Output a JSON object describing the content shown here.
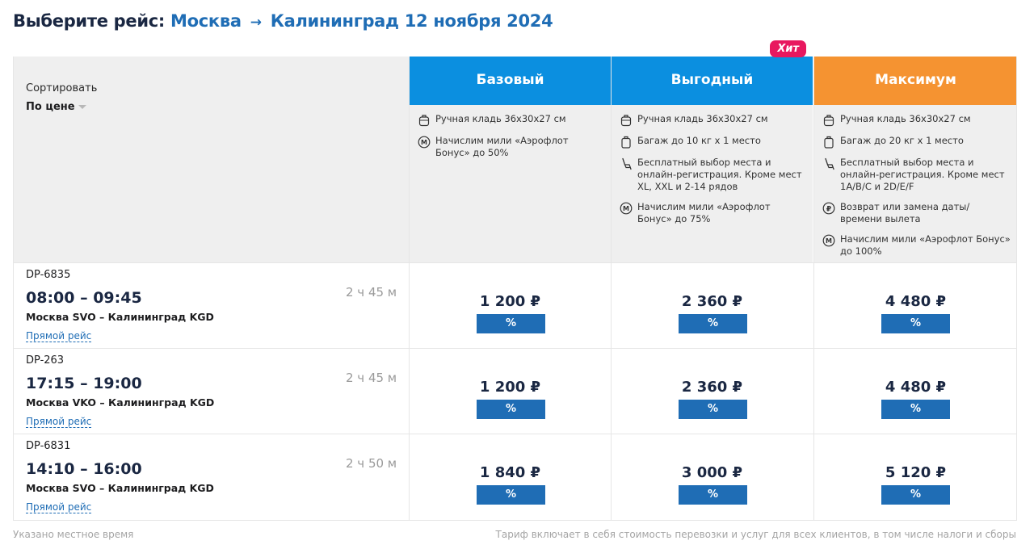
{
  "header": {
    "prefix": "Выберите рейс:",
    "from": "Москва",
    "arrow": "→",
    "to_date": "Калининград 12 ноября 2024"
  },
  "sort": {
    "label": "Сортировать",
    "value": "По цене"
  },
  "tariffs": [
    {
      "name": "Базовый",
      "color": "#0b8fe0",
      "features": [
        {
          "icon": "hand-luggage-icon",
          "text": "Ручная кладь 36x30x27 см"
        },
        {
          "icon": "miles-icon",
          "text": "Начислим мили «Аэрофлот Бонус» до 50%"
        }
      ]
    },
    {
      "name": "Выгодный",
      "color": "#0b8fe0",
      "badge": "Хит",
      "features": [
        {
          "icon": "hand-luggage-icon",
          "text": "Ручная кладь 36x30x27 см"
        },
        {
          "icon": "baggage-icon",
          "text": "Багаж до 10 кг x 1 место"
        },
        {
          "icon": "seat-icon",
          "text": "Бесплатный выбор места и онлайн-регистрация. Кроме мест XL, XXL и 2-14 рядов"
        },
        {
          "icon": "miles-icon",
          "text": "Начислим мили «Аэрофлот Бонус» до 75%"
        }
      ]
    },
    {
      "name": "Максимум",
      "color": "#f59331",
      "features": [
        {
          "icon": "hand-luggage-icon",
          "text": "Ручная кладь 36x30x27 см"
        },
        {
          "icon": "baggage-icon",
          "text": "Багаж до 20 кг x 1 место"
        },
        {
          "icon": "seat-icon",
          "text": "Бесплатный выбор места и онлайн-регистрация. Кроме мест 1A/B/C и 2D/E/F"
        },
        {
          "icon": "refund-icon",
          "text": "Возврат или замена даты/ времени вылета"
        },
        {
          "icon": "miles-icon",
          "text": "Начислим мили «Аэрофлот Бонус» до 100%"
        }
      ]
    }
  ],
  "flights": [
    {
      "number": "DP-6835",
      "times": "08:00 – 09:45",
      "route": "Москва SVO – Калининград KGD",
      "type": "Прямой рейс",
      "duration": "2 ч 45 м",
      "prices": [
        "1 200 ₽",
        "2 360 ₽",
        "4 480 ₽"
      ]
    },
    {
      "number": "DP-263",
      "times": "17:15 – 19:00",
      "route": "Москва VKO – Калининград KGD",
      "type": "Прямой рейс",
      "duration": "2 ч 45 м",
      "prices": [
        "1 200 ₽",
        "2 360 ₽",
        "4 480 ₽"
      ]
    },
    {
      "number": "DP-6831",
      "times": "14:10 – 16:00",
      "route": "Москва SVO – Калининград KGD",
      "type": "Прямой рейс",
      "duration": "2 ч 50 м",
      "prices": [
        "1 840 ₽",
        "3 000 ₽",
        "5 120 ₽"
      ]
    }
  ],
  "discount_label": "%",
  "footer": {
    "left": "Указано местное время",
    "right": "Тариф включает в себя стоимость перевозки и услуг для всех клиентов, в том числе налоги и сборы"
  }
}
